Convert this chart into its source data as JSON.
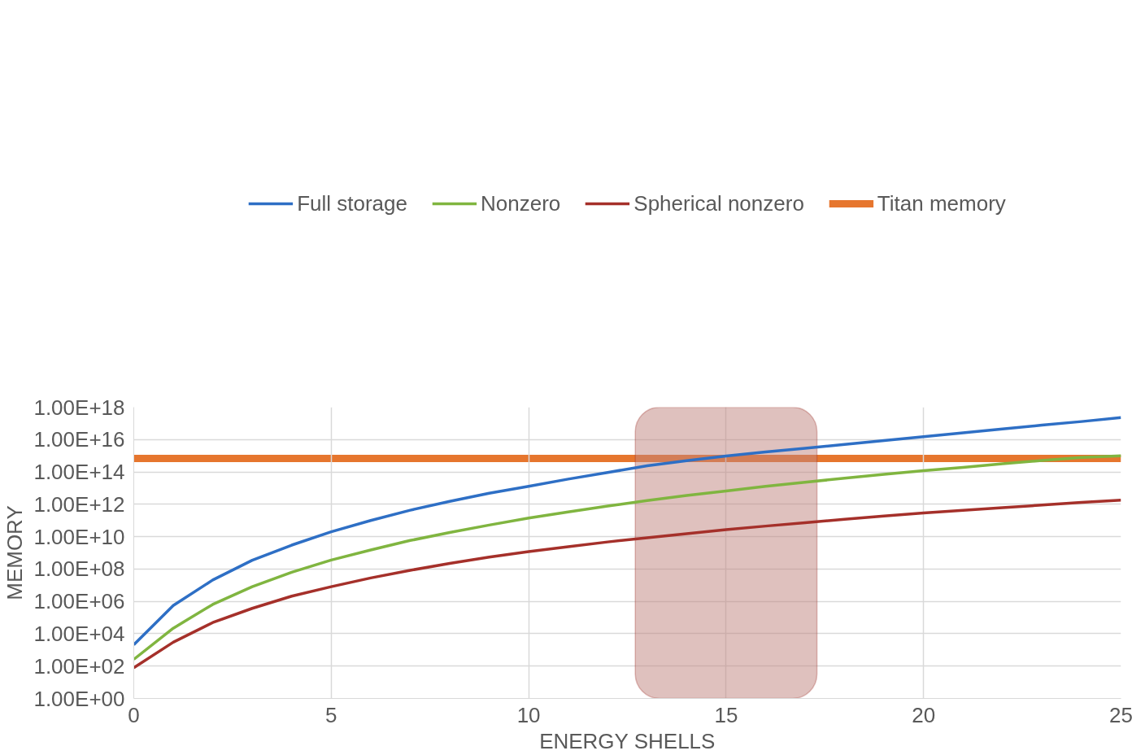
{
  "chart_data": {
    "type": "line",
    "xlabel": "ENERGY SHELLS",
    "ylabel": "MEMORY",
    "x": [
      0,
      1,
      2,
      3,
      4,
      5,
      6,
      7,
      8,
      9,
      10,
      11,
      12,
      13,
      14,
      15,
      16,
      17,
      18,
      19,
      20,
      21,
      22,
      23,
      24,
      25
    ],
    "series": [
      {
        "name": "Full storage",
        "color": "#2e6fc5",
        "values": [
          2100.0,
          550000.0,
          21000000.0,
          350000000.0,
          3000000000.0,
          20000000000.0,
          100000000000.0,
          430000000000.0,
          1500000000000.0,
          4800000000000.0,
          13000000000000.0,
          36000000000000.0,
          93000000000000.0,
          240000000000000.0,
          490000000000000.0,
          950000000000000.0,
          1700000000000000.0,
          2900000000000000.0,
          5000000000000000.0,
          8700000000000000.0,
          1.5e+16,
          2.6e+16,
          4.5e+16,
          7.8e+16,
          1.3e+17,
          2.3e+17
        ]
      },
      {
        "name": "Nonzero",
        "color": "#80b540",
        "values": [
          260.0,
          22000.0,
          650000.0,
          8100000.0,
          63000000.0,
          360000000.0,
          1500000000.0,
          5800000000.0,
          18000000000.0,
          52000000000.0,
          140000000000.0,
          340000000000.0,
          780000000000.0,
          1700000000000.0,
          3500000000000.0,
          6600000000000.0,
          13000000000000.0,
          23000000000000.0,
          41000000000000.0,
          71000000000000.0,
          120000000000000.0,
          190000000000000.0,
          320000000000000.0,
          510000000000000.0,
          790000000000000.0,
          1000000000000000.0
        ]
      },
      {
        "name": "Spherical nonzero",
        "color": "#a5302a",
        "values": [
          78,
          3000.0,
          49000.0,
          370000.0,
          2100000.0,
          8100000.0,
          28000000.0,
          83000000.0,
          220000000.0,
          540000000.0,
          1200000000.0,
          2400000000.0,
          4700000000.0,
          8500000000.0,
          15000000000.0,
          27000000000.0,
          45000000000.0,
          72000000000.0,
          120000000000.0,
          190000000000.0,
          290000000000.0,
          420000000000.0,
          620000000000.0,
          890000000000.0,
          1300000000000.0,
          1800000000000.0
        ]
      }
    ],
    "ref_lines": [
      {
        "axis": "y",
        "value": 680000000000000.0,
        "label": "Titan memory",
        "color": "#e6762e"
      }
    ],
    "bands": [
      {
        "axis": "x",
        "from": 12.7,
        "to": 17.3,
        "label": null,
        "color": "#c0847e"
      }
    ],
    "log": "y",
    "grid": true,
    "legend": "top",
    "marker": "none",
    "line_style": "solid",
    "xlim": [
      0,
      25
    ],
    "xticks": [
      0,
      5,
      10,
      15,
      20,
      25
    ],
    "ylim": [
      1,
      1e+18
    ],
    "yticks": [
      {
        "value": 1,
        "label": "1.00E+00"
      },
      {
        "value": 100.0,
        "label": "1.00E+02"
      },
      {
        "value": 10000.0,
        "label": "1.00E+04"
      },
      {
        "value": 1000000.0,
        "label": "1.00E+06"
      },
      {
        "value": 100000000.0,
        "label": "1.00E+08"
      },
      {
        "value": 10000000000.0,
        "label": "1.00E+10"
      },
      {
        "value": 1000000000000.0,
        "label": "1.00E+12"
      },
      {
        "value": 100000000000000.0,
        "label": "1.00E+14"
      },
      {
        "value": 1e+16,
        "label": "1.00E+16"
      },
      {
        "value": 1e+18,
        "label": "1.00E+18"
      }
    ]
  }
}
